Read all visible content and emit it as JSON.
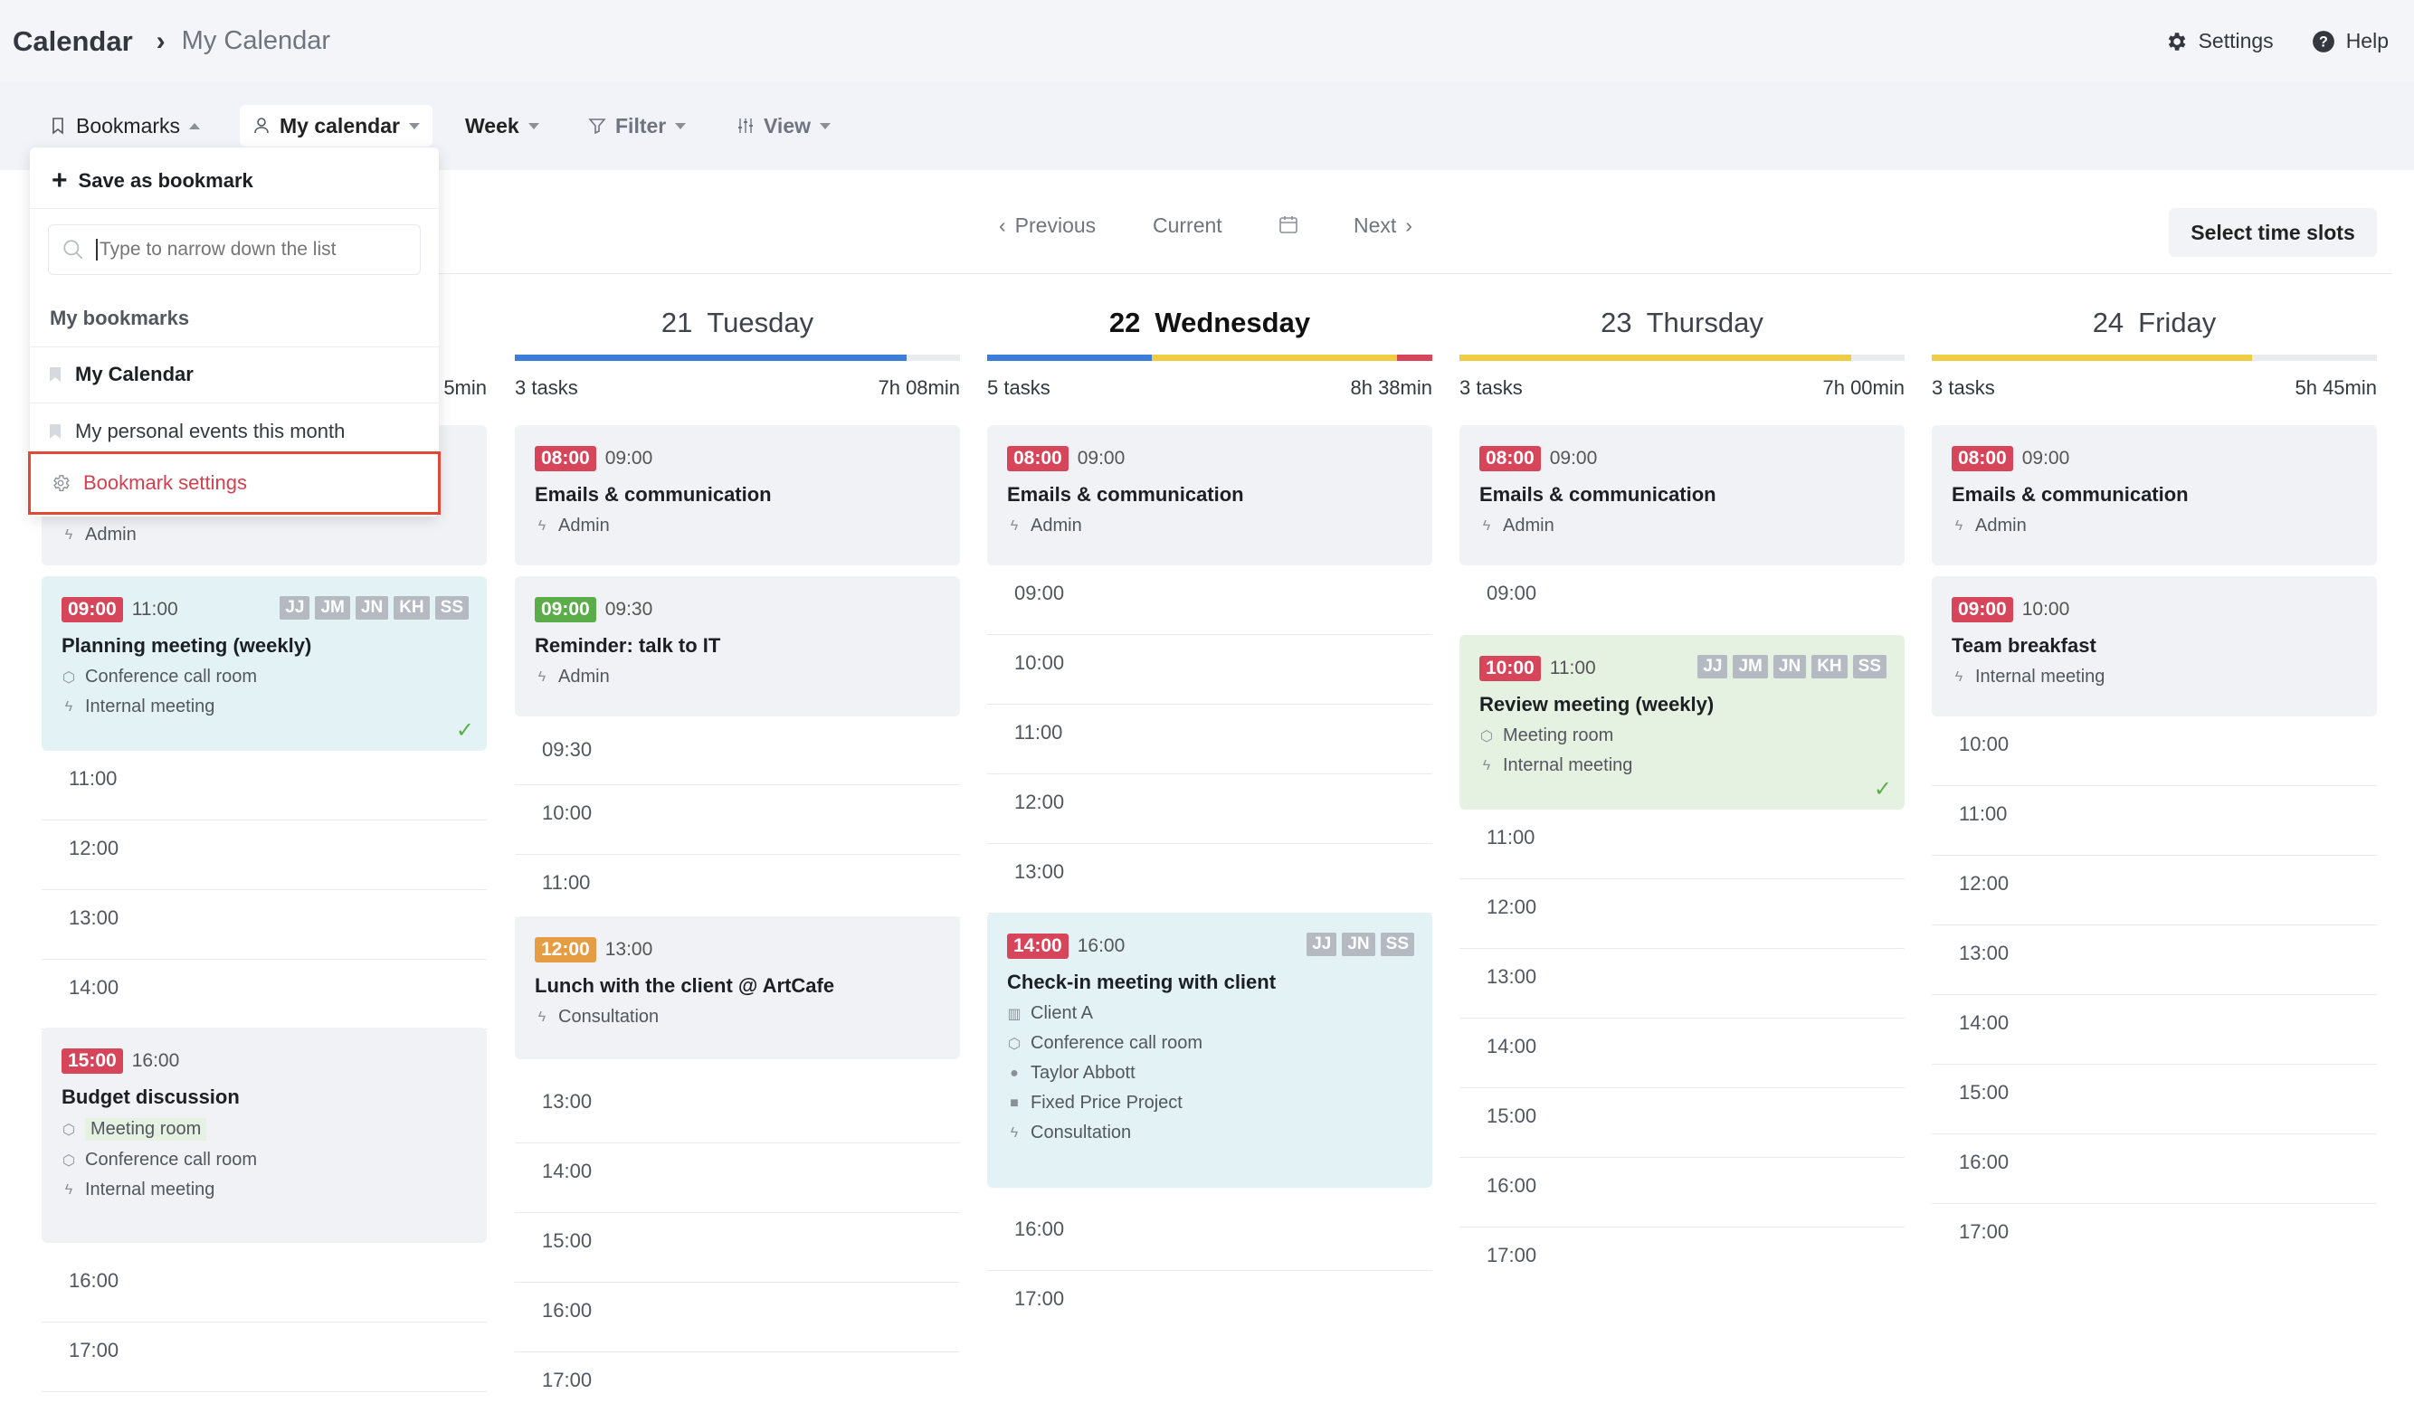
{
  "breadcrumb": {
    "root": "Calendar",
    "separator": "›",
    "current": "My Calendar"
  },
  "top_actions": {
    "settings": "Settings",
    "help": "Help"
  },
  "toolbar": {
    "bookmarks": "Bookmarks",
    "my_calendar": "My calendar",
    "week": "Week",
    "filter": "Filter",
    "view": "View"
  },
  "nav": {
    "previous": "Previous",
    "current": "Current",
    "next": "Next",
    "select_slots": "Select time slots"
  },
  "bookmarks_dropdown": {
    "save": "Save as bookmark",
    "search_placeholder": "Type to narrow down the list",
    "heading": "My bookmarks",
    "items": [
      "My Calendar",
      "My personal events this month"
    ],
    "settings": "Bookmark settings"
  },
  "colors": {
    "red": "#d7455a",
    "green": "#5aad48",
    "orange": "#e59c42",
    "blue": "#3b7dd8",
    "yellow": "#f0cc45",
    "highlight": "#e04838"
  },
  "monday": {
    "duration": "5min",
    "events": [
      {
        "category": "Admin"
      },
      {
        "start": "09:00",
        "end": "11:00",
        "title": "Planning meeting (weekly)",
        "avatars": [
          "JJ",
          "JM",
          "JN",
          "KH",
          "SS"
        ],
        "meta": [
          "Conference call room",
          "Internal meeting"
        ]
      },
      {
        "start": "15:00",
        "end": "16:00",
        "title": "Budget discussion",
        "meta": [
          "Meeting room",
          "Conference call room",
          "Internal meeting"
        ]
      }
    ],
    "slots": [
      "11:00",
      "12:00",
      "13:00",
      "14:00",
      "16:00",
      "17:00"
    ]
  },
  "tuesday": {
    "day_num": "21",
    "day_name": "Tuesday",
    "tasks": "3 tasks",
    "duration": "7h 08min",
    "events": [
      {
        "start": "08:00",
        "end": "09:00",
        "title": "Emails & communication",
        "meta": [
          "Admin"
        ]
      },
      {
        "start": "09:00",
        "end": "09:30",
        "title": "Reminder: talk to IT",
        "meta": [
          "Admin"
        ]
      },
      {
        "start": "12:00",
        "end": "13:00",
        "title": "Lunch with the client @ ArtCafe",
        "meta": [
          "Consultation"
        ]
      }
    ],
    "slots": [
      "09:30",
      "10:00",
      "11:00",
      "13:00",
      "14:00",
      "15:00",
      "16:00",
      "17:00"
    ]
  },
  "wednesday": {
    "day_num": "22",
    "day_name": "Wednesday",
    "tasks": "5 tasks",
    "duration": "8h 38min",
    "events": [
      {
        "start": "08:00",
        "end": "09:00",
        "title": "Emails & communication",
        "meta": [
          "Admin"
        ]
      },
      {
        "start": "14:00",
        "end": "16:00",
        "title": "Check-in meeting with client",
        "avatars": [
          "JJ",
          "JN",
          "SS"
        ],
        "meta": [
          "Client A",
          "Conference call room",
          "Taylor Abbott",
          "Fixed Price Project",
          "Consultation"
        ]
      }
    ],
    "slots": [
      "09:00",
      "10:00",
      "11:00",
      "12:00",
      "13:00",
      "16:00",
      "17:00"
    ]
  },
  "thursday": {
    "day_num": "23",
    "day_name": "Thursday",
    "tasks": "3 tasks",
    "duration": "7h 00min",
    "events": [
      {
        "start": "08:00",
        "end": "09:00",
        "title": "Emails & communication",
        "meta": [
          "Admin"
        ]
      },
      {
        "start": "10:00",
        "end": "11:00",
        "title": "Review meeting (weekly)",
        "avatars": [
          "JJ",
          "JM",
          "JN",
          "KH",
          "SS"
        ],
        "meta": [
          "Meeting room",
          "Internal meeting"
        ]
      }
    ],
    "slots": [
      "09:00",
      "11:00",
      "12:00",
      "13:00",
      "14:00",
      "15:00",
      "16:00",
      "17:00"
    ]
  },
  "friday": {
    "day_num": "24",
    "day_name": "Friday",
    "tasks": "3 tasks",
    "duration": "5h 45min",
    "events": [
      {
        "start": "08:00",
        "end": "09:00",
        "title": "Emails & communication",
        "meta": [
          "Admin"
        ]
      },
      {
        "start": "09:00",
        "end": "10:00",
        "title": "Team breakfast",
        "meta": [
          "Internal meeting"
        ]
      }
    ],
    "slots": [
      "10:00",
      "11:00",
      "12:00",
      "13:00",
      "14:00",
      "15:00",
      "16:00",
      "17:00"
    ]
  }
}
